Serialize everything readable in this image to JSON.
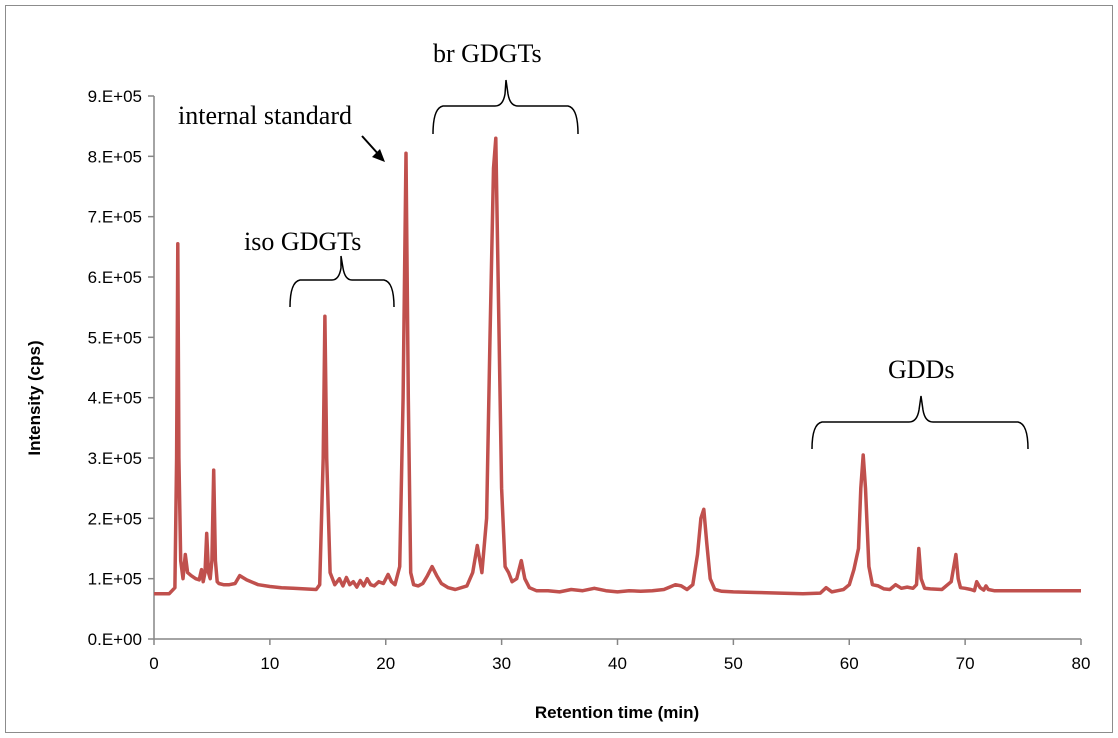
{
  "chart_data": {
    "type": "line",
    "xlabel": "Retention time (min)",
    "ylabel": "Intensity (cps)",
    "xlim": [
      0,
      80
    ],
    "ylim": [
      0,
      900000
    ],
    "x_ticks": [
      0,
      10,
      20,
      30,
      40,
      50,
      60,
      70,
      80
    ],
    "x_tick_labels": [
      "0",
      "10",
      "20",
      "30",
      "40",
      "50",
      "60",
      "70",
      "80"
    ],
    "y_ticks": [
      0,
      100000,
      200000,
      300000,
      400000,
      500000,
      600000,
      700000,
      800000,
      900000
    ],
    "y_tick_labels": [
      "0.E+00",
      "1.E+05",
      "2.E+05",
      "3.E+05",
      "4.E+05",
      "5.E+05",
      "6.E+05",
      "7.E+05",
      "8.E+05",
      "9.E+05"
    ],
    "grid": false,
    "legend": "none",
    "line_color": "#c0504d",
    "series": [
      {
        "x": [
          0,
          1.3,
          1.8,
          1.95,
          2.05,
          2.15,
          2.3,
          2.5,
          2.7,
          2.9,
          3.2,
          3.6,
          3.9,
          4.1,
          4.25,
          4.4,
          4.55,
          4.7,
          4.85,
          5.0,
          5.15,
          5.3,
          5.45,
          5.6,
          6.0,
          6.5,
          7.0,
          7.4,
          8.0,
          9.0,
          10.0,
          11.0,
          12.0,
          13.0,
          14.0,
          14.3,
          14.6,
          14.75,
          14.9,
          15.2,
          15.6,
          16.0,
          16.3,
          16.6,
          16.9,
          17.2,
          17.5,
          17.8,
          18.1,
          18.4,
          18.7,
          19.0,
          19.4,
          19.8,
          20.2,
          20.5,
          20.8,
          21.2,
          21.5,
          21.75,
          21.95,
          22.15,
          22.4,
          22.8,
          23.2,
          23.6,
          24.0,
          24.4,
          24.8,
          25.4,
          26.0,
          27.0,
          27.5,
          27.9,
          28.3,
          28.7,
          29.0,
          29.3,
          29.5,
          29.7,
          30.0,
          30.3,
          30.6,
          30.9,
          31.3,
          31.7,
          32.0,
          32.4,
          33.0,
          34.0,
          35.0,
          36.0,
          37.0,
          38.0,
          39.0,
          40.0,
          41.0,
          42.0,
          43.0,
          44.0,
          45.0,
          45.5,
          46.0,
          46.5,
          46.9,
          47.2,
          47.45,
          47.7,
          48.0,
          48.4,
          49.0,
          50.0,
          52.0,
          54.0,
          56.0,
          57.5,
          58.0,
          58.5,
          59.0,
          59.5,
          60.0,
          60.4,
          60.8,
          61.0,
          61.2,
          61.4,
          61.7,
          62.0,
          62.5,
          63.0,
          63.5,
          64.0,
          64.5,
          65.0,
          65.5,
          65.8,
          66.0,
          66.2,
          66.5,
          67.0,
          68.0,
          68.8,
          69.2,
          69.4,
          69.6,
          70.0,
          70.5,
          70.8,
          71.0,
          71.3,
          71.6,
          71.8,
          72.0,
          72.5,
          74.0,
          76.0,
          78.0,
          80.0
        ],
        "y": [
          75000,
          75000,
          85000,
          300000,
          655000,
          300000,
          130000,
          100000,
          140000,
          110000,
          105000,
          100000,
          98000,
          115000,
          95000,
          110000,
          175000,
          110000,
          100000,
          130000,
          280000,
          130000,
          95000,
          92000,
          90000,
          90000,
          92000,
          105000,
          98000,
          90000,
          87000,
          85000,
          84000,
          83000,
          82000,
          90000,
          300000,
          535000,
          300000,
          110000,
          90000,
          100000,
          88000,
          102000,
          90000,
          95000,
          86000,
          97000,
          88000,
          100000,
          90000,
          88000,
          95000,
          92000,
          107000,
          95000,
          90000,
          120000,
          400000,
          805000,
          400000,
          110000,
          90000,
          88000,
          92000,
          105000,
          120000,
          105000,
          92000,
          85000,
          82000,
          88000,
          110000,
          155000,
          110000,
          200000,
          500000,
          780000,
          830000,
          600000,
          250000,
          120000,
          110000,
          95000,
          100000,
          130000,
          100000,
          85000,
          80000,
          80000,
          78000,
          82000,
          80000,
          84000,
          80000,
          78000,
          80000,
          79000,
          80000,
          82000,
          90000,
          88000,
          82000,
          90000,
          140000,
          200000,
          215000,
          160000,
          100000,
          82000,
          79000,
          78000,
          77000,
          76000,
          75000,
          76000,
          85000,
          78000,
          80000,
          82000,
          90000,
          115000,
          150000,
          250000,
          305000,
          250000,
          120000,
          90000,
          88000,
          83000,
          82000,
          90000,
          84000,
          86000,
          84000,
          90000,
          150000,
          100000,
          84000,
          83000,
          82000,
          95000,
          140000,
          100000,
          85000,
          84000,
          82000,
          80000,
          95000,
          85000,
          81000,
          88000,
          82000,
          80000,
          80000,
          80000,
          80000,
          80000
        ]
      }
    ],
    "annotations": [
      {
        "text": "internal standard",
        "x": 21.7,
        "y": 805000
      },
      {
        "text": "iso GDGTs",
        "range": [
          11.8,
          20.8
        ]
      },
      {
        "text": "br GDGTs",
        "range": [
          24.0,
          36.8
        ]
      },
      {
        "text": "GDDs",
        "range": [
          56.8,
          75.4
        ]
      }
    ]
  }
}
